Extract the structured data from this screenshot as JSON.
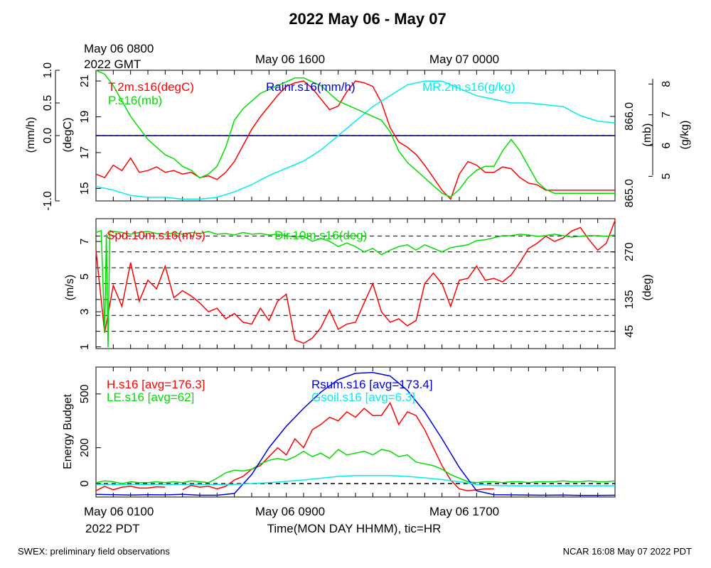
{
  "title": "2022 May 06 - May 07",
  "top_times": {
    "t1": "May 06 0800",
    "t1b": "2022 GMT",
    "t2": "May 06 1600",
    "t3": "May 07 0000"
  },
  "bottom_times": {
    "t1": "May 06 0100",
    "t1b": "2022 PDT",
    "t2": "May 06 0900",
    "t3": "May 06 1700"
  },
  "x_title": "Time(MON DAY HHMM), tic=HR",
  "footer_left": "SWEX: preliminary field observations",
  "footer_right": "NCAR 16:08 May 07 2022 PDT",
  "colors": {
    "red": "#ff0000",
    "green": "#00dd00",
    "blue": "#0000dd",
    "cyan": "#00eeee",
    "black": "#000000"
  },
  "chart_data": [
    {
      "type": "line",
      "x_unit": "hours since May 06 0100 PDT",
      "xlim": [
        0,
        30
      ],
      "axes": {
        "left_outer": {
          "label": "(mm/h)",
          "lim": [
            -1.0,
            1.0
          ],
          "ticks": [
            "-1.0",
            "0.0",
            "0.5",
            "1.0"
          ]
        },
        "left_inner": {
          "label": "(degC)",
          "lim": [
            14.3,
            21.6
          ],
          "ticks": [
            "15",
            "17",
            "19",
            "21"
          ]
        },
        "right_inner": {
          "label": "(mb)",
          "lim": [
            864.9,
            866.6
          ],
          "ticks": [
            "865.0",
            "866.0"
          ]
        },
        "right_outer": {
          "label": "(g/kg)",
          "lim": [
            4.8,
            8.4
          ],
          "ticks": [
            "5",
            "6",
            "7",
            "8"
          ]
        }
      },
      "series": [
        {
          "name": "T.2m.s16(degC)",
          "color": "red",
          "axis": "left_inner",
          "x": [
            0,
            0.5,
            1,
            1.5,
            2,
            2.5,
            3,
            3.5,
            4,
            4.5,
            5,
            5.5,
            6,
            6.5,
            7,
            7.5,
            8,
            8.5,
            9,
            9.5,
            10,
            10.5,
            11,
            11.5,
            12,
            12.5,
            13,
            13.5,
            14,
            14.5,
            15,
            15.5,
            16,
            16.5,
            17,
            17.5,
            18,
            18.5,
            19,
            19.5,
            20,
            20.5,
            21,
            21.5,
            22,
            22.5,
            23,
            23.5,
            24,
            24.5,
            25,
            25.5,
            26,
            26.5,
            27,
            27.5,
            28,
            28.5,
            29,
            29.5,
            30
          ],
          "values": [
            15.8,
            15.6,
            16.3,
            16.0,
            16.7,
            15.9,
            16.0,
            16.2,
            15.9,
            16.0,
            15.8,
            15.9,
            15.6,
            15.7,
            15.5,
            15.9,
            16.5,
            17.4,
            18.3,
            19.0,
            19.6,
            20.2,
            20.7,
            20.9,
            21.0,
            20.6,
            20.0,
            19.4,
            19.6,
            20.4,
            21.0,
            20.9,
            20.7,
            19.8,
            18.4,
            17.6,
            17.3,
            16.9,
            16.3,
            15.6,
            14.9,
            14.4,
            15.8,
            16.5,
            16.3,
            15.9,
            15.9,
            16.2,
            16.1,
            15.6,
            15.3,
            15.2,
            14.9,
            14.9,
            14.9,
            14.9,
            14.9,
            14.9,
            14.9,
            14.9,
            14.9
          ]
        },
        {
          "name": "Rainr.s16(mm/h)",
          "color": "blue",
          "axis": "left_outer",
          "x": [
            0,
            30
          ],
          "values": [
            0,
            0
          ]
        },
        {
          "name": "MR.2m.s16(g/kg)",
          "color": "cyan",
          "axis": "right_outer",
          "x": [
            0,
            1,
            2,
            3,
            4,
            5,
            6,
            7,
            8,
            9,
            10,
            11,
            12,
            13,
            14,
            15,
            16,
            17,
            18,
            19,
            20,
            21,
            22,
            23,
            24,
            25,
            26,
            27,
            28,
            29,
            30
          ],
          "values": [
            5.2,
            5.1,
            4.95,
            4.9,
            4.9,
            4.85,
            4.85,
            4.9,
            5.05,
            5.25,
            5.5,
            5.7,
            5.9,
            6.2,
            6.6,
            7.0,
            7.4,
            7.7,
            8.0,
            8.1,
            8.1,
            7.9,
            7.7,
            7.6,
            7.5,
            7.5,
            7.45,
            7.4,
            7.15,
            7.0,
            6.95
          ]
        },
        {
          "name": "P.s16(mb)",
          "color": "green",
          "axis": "right_inner",
          "x": [
            0,
            0.5,
            1,
            1.5,
            2,
            2.5,
            3,
            3.5,
            4,
            4.5,
            5,
            5.5,
            6,
            6.5,
            7,
            7.5,
            8,
            8.5,
            9,
            9.5,
            10,
            10.5,
            11,
            11.5,
            12,
            12.5,
            13,
            13.5,
            14,
            14.5,
            15,
            15.5,
            16,
            16.5,
            17,
            17.5,
            18,
            18.5,
            19,
            19.5,
            20,
            20.5,
            21,
            21.5,
            22,
            22.5,
            23,
            23.5,
            24,
            24.5,
            25,
            25.5,
            26,
            26.5,
            27,
            27.5,
            28,
            28.5,
            29,
            29.5,
            30
          ],
          "values": [
            866.6,
            866.55,
            866.4,
            866.2,
            866.0,
            865.85,
            865.7,
            865.6,
            865.5,
            865.45,
            865.35,
            865.3,
            865.2,
            865.25,
            865.35,
            865.6,
            865.95,
            866.1,
            866.2,
            866.3,
            866.35,
            866.4,
            866.45,
            866.5,
            866.5,
            866.45,
            866.4,
            866.3,
            866.2,
            866.15,
            866.1,
            866.05,
            866.0,
            865.95,
            865.8,
            865.55,
            865.4,
            865.3,
            865.2,
            865.1,
            865.0,
            864.95,
            865.05,
            865.2,
            865.3,
            865.35,
            865.35,
            865.55,
            865.7,
            865.55,
            865.35,
            865.15,
            865.05,
            865.0,
            865.0,
            865.0,
            865.0,
            865.0,
            865.0,
            865.0,
            865.0
          ]
        }
      ]
    },
    {
      "type": "line",
      "xlim": [
        0,
        30
      ],
      "axes": {
        "left": {
          "label": "(m/s)",
          "lim": [
            0.9,
            8.3
          ],
          "ticks": [
            "1",
            "3",
            "5",
            "7"
          ]
        },
        "right": {
          "label": "(deg)",
          "lim": [
            0,
            360
          ],
          "ticks": [
            "45",
            "135",
            "270"
          ]
        }
      },
      "hlines_deg": [
        45,
        90,
        135,
        180,
        225,
        270,
        315
      ],
      "series": [
        {
          "name": "Spd.10m.s16(m/s)",
          "color": "red",
          "axis": "left",
          "x": [
            0,
            0.5,
            1,
            1.5,
            2,
            2.5,
            3,
            3.5,
            4,
            4.5,
            5,
            5.5,
            6,
            6.5,
            7,
            7.5,
            8,
            8.5,
            9,
            9.5,
            10,
            10.5,
            11,
            11.5,
            12,
            12.5,
            13,
            13.5,
            14,
            14.5,
            15,
            15.5,
            16,
            16.5,
            17,
            17.5,
            18,
            18.5,
            19,
            19.5,
            20,
            20.5,
            21,
            21.5,
            22,
            22.5,
            23,
            23.5,
            24,
            24.5,
            25,
            25.5,
            26,
            26.5,
            27,
            27.5,
            28,
            28.5,
            29,
            29.5,
            30
          ],
          "values": [
            6.5,
            1.8,
            4.5,
            3.3,
            5.8,
            3.6,
            4.8,
            4.3,
            5.6,
            3.8,
            4.2,
            3.9,
            3.5,
            3.0,
            3.2,
            2.6,
            2.9,
            2.4,
            2.3,
            3.2,
            2.5,
            3.6,
            4.0,
            1.4,
            1.2,
            1.5,
            2.1,
            3.1,
            2.0,
            2.3,
            2.4,
            3.5,
            4.6,
            3.0,
            2.4,
            2.6,
            2.2,
            2.5,
            4.6,
            5.2,
            4.6,
            3.3,
            4.8,
            4.9,
            5.6,
            4.8,
            4.9,
            4.7,
            5.1,
            5.8,
            6.6,
            6.9,
            7.3,
            7.0,
            7.2,
            7.6,
            7.8,
            7.1,
            6.5,
            6.9,
            8.2
          ]
        },
        {
          "name": "Dir.10m.s16(deg)",
          "color": "green",
          "axis": "right",
          "x": [
            0,
            0.3,
            0.5,
            0.6,
            0.7,
            0.8,
            1,
            1.5,
            2,
            2.5,
            3,
            3.5,
            4,
            4.5,
            5,
            5.5,
            6,
            6.5,
            7,
            7.5,
            8,
            8.5,
            9,
            9.5,
            10,
            10.5,
            11,
            11.5,
            12,
            12.5,
            13,
            13.5,
            14,
            14.5,
            15,
            15.5,
            16,
            16.5,
            17,
            17.5,
            18,
            18.5,
            19,
            19.5,
            20,
            20.5,
            21,
            21.5,
            22,
            22.5,
            23,
            23.5,
            24,
            24.5,
            25,
            25.5,
            26,
            26.5,
            27,
            27.5,
            28,
            28.5,
            29,
            29.5,
            30
          ],
          "values": [
            325,
            330,
            40,
            320,
            0,
            330,
            328,
            325,
            320,
            325,
            328,
            322,
            320,
            324,
            320,
            325,
            322,
            328,
            320,
            322,
            318,
            325,
            320,
            322,
            318,
            320,
            316,
            312,
            314,
            300,
            308,
            300,
            285,
            295,
            285,
            270,
            280,
            262,
            275,
            285,
            290,
            275,
            290,
            280,
            270,
            282,
            286,
            290,
            302,
            304,
            310,
            316,
            316,
            320,
            318,
            314,
            316,
            320,
            316,
            312,
            314,
            316,
            316,
            314,
            318
          ]
        }
      ]
    },
    {
      "type": "line",
      "xlim": [
        0,
        30
      ],
      "axes": {
        "left": {
          "label": "Energy Budget",
          "lim": [
            -75,
            650
          ],
          "ticks": [
            "0",
            "200",
            "500"
          ]
        }
      },
      "series": [
        {
          "name": "H.s16 [avg=176.3]",
          "color": "red",
          "x": [
            0,
            0.5,
            1,
            1.5,
            2,
            2.5,
            3,
            3.5,
            4,
            4.5,
            5,
            5.5,
            6,
            6.5,
            7,
            7.5,
            8,
            8.5,
            9,
            9.5,
            10,
            10.5,
            11,
            11.5,
            12,
            12.5,
            13,
            13.5,
            14,
            14.5,
            15,
            15.5,
            16,
            16.5,
            17,
            17.5,
            18,
            18.5,
            19,
            19.5,
            20,
            20.5,
            21,
            21.5,
            22,
            22.5,
            23
          ],
          "values": [
            -40,
            -15,
            -35,
            -20,
            -15,
            -25,
            -25,
            -18,
            -20,
            null,
            -35,
            -10,
            -20,
            -15,
            -30,
            -15,
            20,
            40,
            80,
            100,
            150,
            200,
            160,
            250,
            200,
            300,
            330,
            370,
            350,
            400,
            370,
            420,
            380,
            380,
            450,
            330,
            400,
            380,
            300,
            200,
            100,
            20,
            -30,
            -40,
            -35,
            -30,
            -30
          ]
        },
        {
          "name": "LE.s16 [avg=62]",
          "color": "green",
          "x": [
            0,
            0.5,
            1,
            1.5,
            2,
            2.5,
            3,
            3.5,
            4,
            4.5,
            5,
            5.5,
            6,
            6.5,
            7,
            7.5,
            8,
            8.5,
            9,
            9.5,
            10,
            10.5,
            11,
            11.5,
            12,
            12.5,
            13,
            13.5,
            14,
            14.5,
            15,
            15.5,
            16,
            16.5,
            17,
            17.5,
            18,
            18.5,
            19,
            19.5,
            20,
            20.5,
            21,
            21.5,
            22,
            22.5,
            23,
            23.5,
            24,
            24.5,
            25,
            25.5,
            26,
            26.5,
            27,
            27.5,
            28,
            28.5,
            29,
            29.5,
            30
          ],
          "values": [
            5,
            15,
            10,
            0,
            10,
            5,
            5,
            10,
            5,
            10,
            5,
            15,
            10,
            5,
            30,
            60,
            75,
            70,
            80,
            110,
            130,
            140,
            130,
            150,
            180,
            150,
            170,
            140,
            190,
            160,
            170,
            180,
            160,
            190,
            180,
            150,
            160,
            120,
            110,
            100,
            80,
            50,
            30,
            10,
            5,
            10,
            10,
            5,
            10,
            10,
            5,
            10,
            10,
            10,
            15,
            10,
            10,
            15,
            10,
            10,
            15
          ]
        },
        {
          "name": "Rsum.s16 [avg=173.4]",
          "color": "blue",
          "x": [
            0,
            1,
            2,
            3,
            4,
            5,
            6,
            7,
            8,
            9,
            10,
            11,
            12,
            13,
            14,
            15,
            16,
            17,
            18,
            19,
            20,
            21,
            22,
            23,
            24,
            25,
            26,
            27,
            28,
            29,
            30
          ],
          "values": [
            -60,
            -62,
            -64,
            -62,
            -63,
            -60,
            -65,
            -65,
            -55,
            50,
            200,
            320,
            420,
            510,
            580,
            615,
            620,
            600,
            520,
            400,
            250,
            90,
            -40,
            -62,
            -63,
            -64,
            -65,
            -64,
            -66,
            -66,
            -65
          ]
        },
        {
          "name": "Gsoil.s16 [avg=6.3]",
          "color": "cyan",
          "x": [
            0,
            2,
            4,
            6,
            8,
            9,
            10,
            11,
            12,
            13,
            14,
            15,
            16,
            17,
            18,
            19,
            20,
            21,
            22,
            23,
            24,
            26,
            28,
            30
          ],
          "values": [
            -5,
            -5,
            -5,
            -5,
            -5,
            0,
            5,
            12,
            20,
            30,
            40,
            45,
            45,
            45,
            40,
            32,
            22,
            10,
            -5,
            -10,
            -12,
            -12,
            -12,
            -12
          ]
        }
      ]
    }
  ]
}
